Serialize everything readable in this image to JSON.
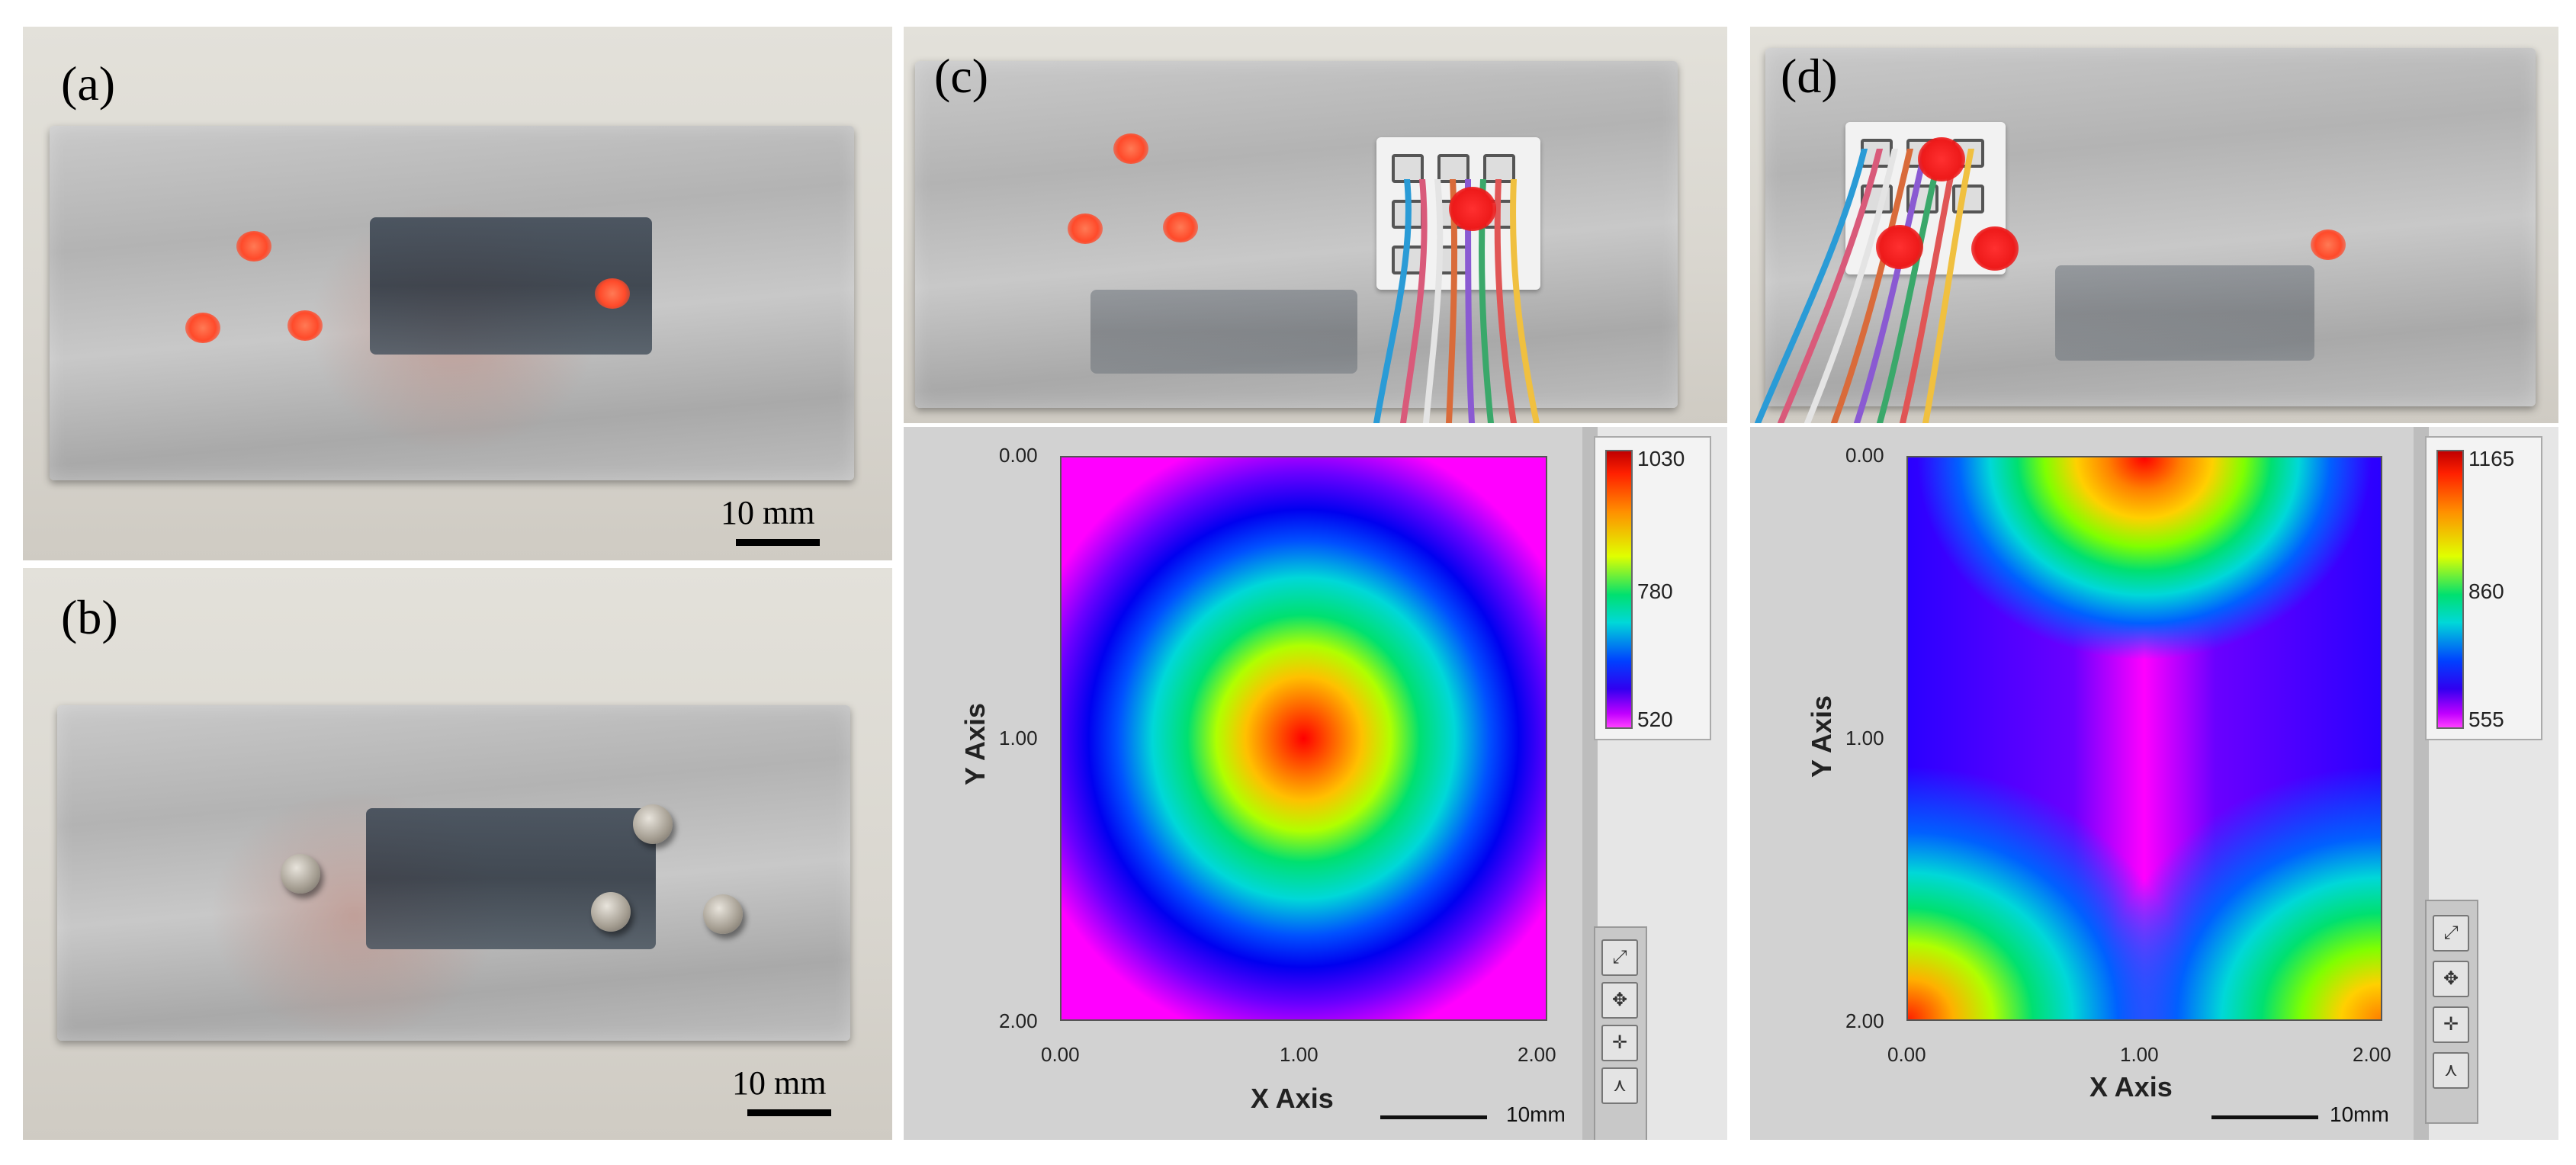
{
  "panels": {
    "a": {
      "label": "(a)",
      "scale": "10 mm"
    },
    "b": {
      "label": "(b)",
      "scale": "10 mm"
    },
    "c": {
      "label": "(c)",
      "scalebar": "10mm",
      "plot": {
        "xlabel": "X Axis",
        "ylabel": "Y Axis",
        "xticks": [
          "0.00",
          "1.00",
          "2.00"
        ],
        "yticks": [
          "0.00",
          "1.00",
          "2.00"
        ],
        "colorbar": {
          "max": "1030",
          "mid": "780",
          "min": "520"
        }
      }
    },
    "d": {
      "label": "(d)",
      "scalebar": "10mm",
      "plot": {
        "xlabel": "X Axis",
        "ylabel": "Y Axis",
        "xticks": [
          "0.00",
          "1.00",
          "2.00"
        ],
        "yticks": [
          "0.00",
          "1.00",
          "2.00"
        ],
        "colorbar": {
          "max": "1165",
          "mid": "860",
          "min": "555"
        }
      }
    }
  },
  "palette": {
    "high": "#ff0000",
    "upper": "#ffa500",
    "middle": "#00e070",
    "lower": "#0030ff",
    "low": "#ff00ff"
  },
  "icons": [
    "graph-zoom-icon",
    "graph-pan-icon",
    "graph-cursor-icon",
    "graph-select-icon"
  ]
}
